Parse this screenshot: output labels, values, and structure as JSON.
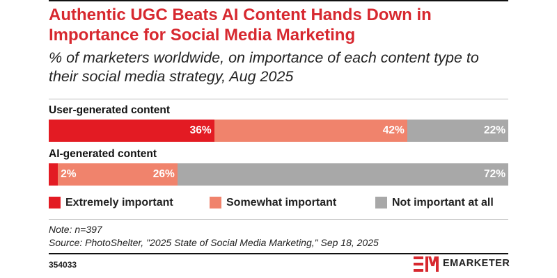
{
  "colors": {
    "accent": "#d7282f",
    "extremely": "#e31b23",
    "somewhat": "#f0836c",
    "not_important": "#a8a8a8",
    "subtitle_text": "#222222"
  },
  "footer": {
    "note": "Note: n=397",
    "source": "Source: PhotoShelter, \"2025 State of Social Media Marketing,\" Sep 18, 2025",
    "chart_id": "354033",
    "brand": "EMARKETER",
    "logo_icon": "em-logo-icon"
  },
  "chart_data": {
    "type": "bar",
    "orientation": "horizontal",
    "stacked": true,
    "percent_stacked": true,
    "title": "Authentic UGC Beats AI Content Hands Down in Importance for Social Media Marketing",
    "subtitle": "% of marketers worldwide, on importance of each content type to their social media strategy, Aug 2025",
    "categories": [
      "User-generated content",
      "AI-generated content"
    ],
    "series": [
      {
        "name": "Extremely important",
        "values": [
          36,
          2
        ],
        "labels": [
          "36%",
          "2%"
        ],
        "color": "#e31b23"
      },
      {
        "name": "Somewhat important",
        "values": [
          42,
          26
        ],
        "labels": [
          "42%",
          "26%"
        ],
        "color": "#f0836c"
      },
      {
        "name": "Not important at all",
        "values": [
          22,
          72
        ],
        "labels": [
          "22%",
          "72%"
        ],
        "color": "#a8a8a8"
      }
    ],
    "xlim": [
      0,
      100
    ],
    "grid": false,
    "legend": "bottom"
  }
}
